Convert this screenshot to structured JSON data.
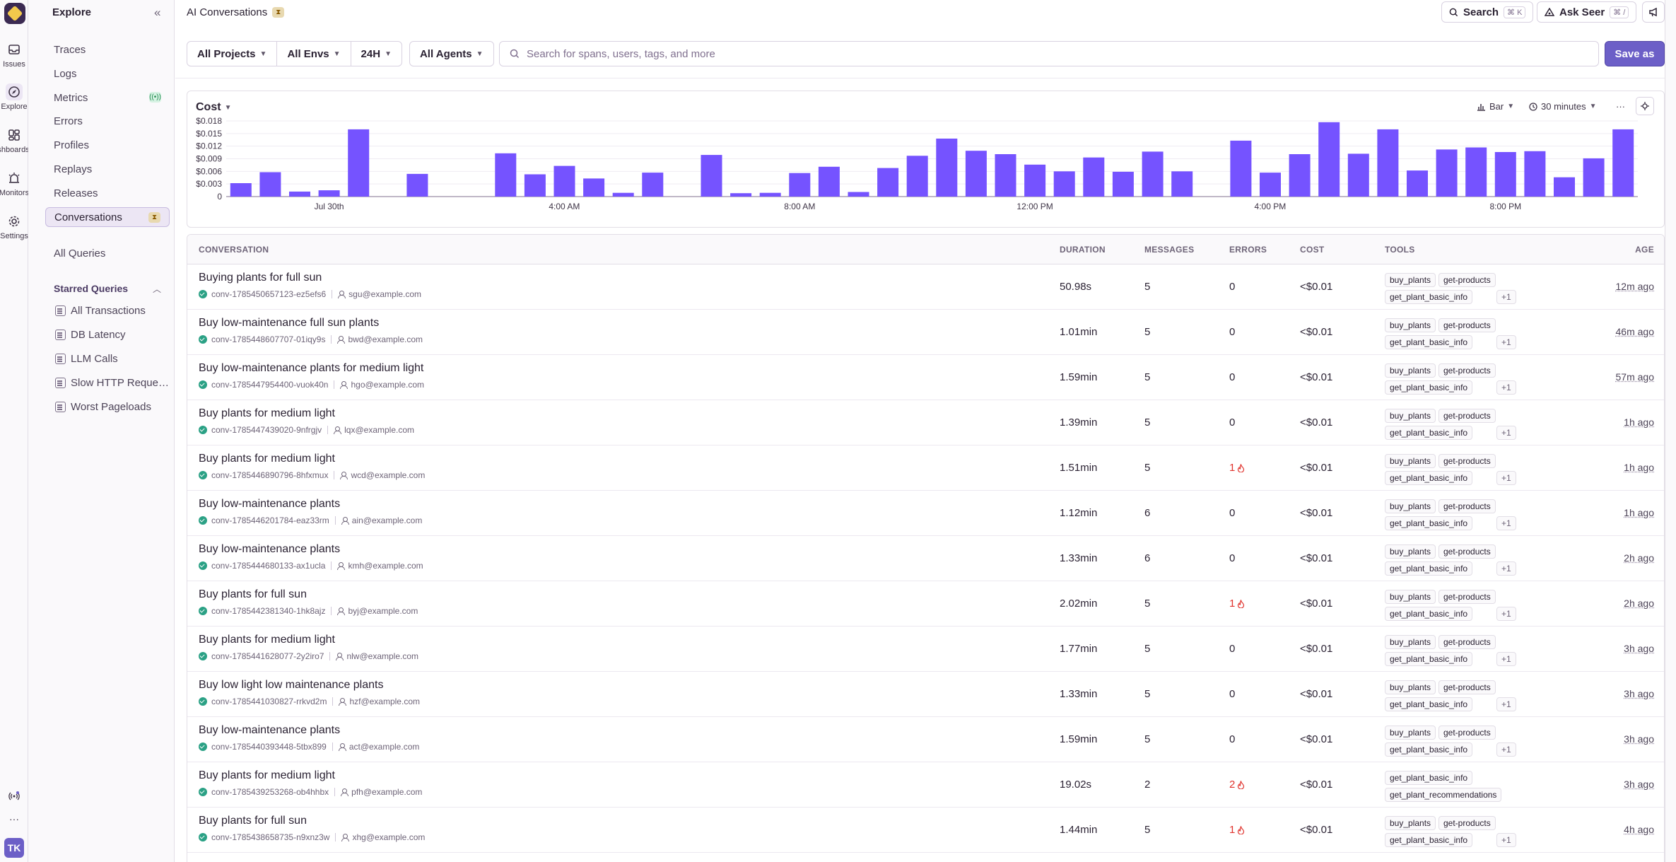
{
  "rail": {
    "items": [
      {
        "label": "Issues",
        "icon": "inbox-icon"
      },
      {
        "label": "Explore",
        "icon": "compass-icon"
      },
      {
        "label": "ashboards",
        "icon": "dashboard-icon"
      },
      {
        "label": "Monitors",
        "icon": "siren-icon"
      },
      {
        "label": "Settings",
        "icon": "gear-icon"
      }
    ],
    "more": "···",
    "avatar": "TK"
  },
  "nav": {
    "title": "Explore",
    "collapse": "«",
    "items": [
      {
        "label": "Traces"
      },
      {
        "label": "Logs"
      },
      {
        "label": "Metrics",
        "badge": "((•))"
      },
      {
        "label": "Errors"
      },
      {
        "label": "Profiles"
      },
      {
        "label": "Replays"
      },
      {
        "label": "Releases"
      },
      {
        "label": "Conversations",
        "badge": "⧗"
      }
    ],
    "all_queries": "All Queries",
    "starred_title": "Starred Queries",
    "starred": [
      "All Transactions",
      "DB Latency",
      "LLM Calls",
      "Slow HTTP Reque…",
      "Worst Pageloads"
    ]
  },
  "header": {
    "title": "AI Conversations",
    "badge": "⧗",
    "search_label": "Search",
    "search_kbd": "⌘ K",
    "seer_label": "Ask Seer",
    "seer_kbd": "⌘ /"
  },
  "filters": {
    "project": "All Projects",
    "env": "All Envs",
    "period": "24H",
    "agents": "All Agents",
    "search_placeholder": "Search for spans, users, tags, and more",
    "save_as": "Save as"
  },
  "chart_controls": {
    "title": "Cost",
    "type": "Bar",
    "interval": "30 minutes",
    "more": "···"
  },
  "chart_data": {
    "type": "bar",
    "title": "Cost",
    "ylim": [
      0,
      0.018
    ],
    "yticks": [
      "$0.018",
      "$0.015",
      "$0.012",
      "$0.009",
      "$0.006",
      "$0.003",
      "0"
    ],
    "ytick_values": [
      0.018,
      0.015,
      0.012,
      0.009,
      0.006,
      0.003,
      0
    ],
    "xtick_labels": [
      {
        "label": "Jul 30th",
        "index": 3
      },
      {
        "label": "4:00 AM",
        "index": 11
      },
      {
        "label": "8:00 AM",
        "index": 19
      },
      {
        "label": "12:00 PM",
        "index": 27
      },
      {
        "label": "4:00 PM",
        "index": 35
      },
      {
        "label": "8:00 PM",
        "index": 43
      }
    ],
    "values": [
      0.0032,
      0.0058,
      0.0012,
      0.0015,
      0.016,
      0,
      0.0054,
      0,
      0,
      0.0103,
      0.0053,
      0.0073,
      0.0043,
      0.0009,
      0.0057,
      0,
      0.0099,
      0.0008,
      0.0009,
      0.0056,
      0.0071,
      0.0011,
      0.0068,
      0.0097,
      0.0138,
      0.0109,
      0.0101,
      0.0076,
      0.006,
      0.0093,
      0.0059,
      0.0107,
      0.006,
      0,
      0.0133,
      0.0057,
      0.0101,
      0.0177,
      0.0102,
      0.016,
      0.0062,
      0.0112,
      0.0117,
      0.0106,
      0.0108,
      0.0046,
      0.0091,
      0.016
    ],
    "grid": true,
    "color": "#7553ff"
  },
  "table": {
    "headers": {
      "conversation": "CONVERSATION",
      "duration": "DURATION",
      "messages": "MESSAGES",
      "errors": "ERRORS",
      "cost": "COST",
      "tools": "TOOLS",
      "age": "AGE"
    },
    "rows": [
      {
        "title": "Buying plants for full sun",
        "id": "conv-1785450657123-ez5efs6",
        "user": "sgu@example.com",
        "duration": "50.98s",
        "messages": "5",
        "errors": "0",
        "cost": "<$0.01",
        "tools": [
          "buy_plants",
          "get-products",
          "get_plant_basic_info",
          "+1"
        ],
        "age": "12m ago"
      },
      {
        "title": "Buy low-maintenance full sun plants",
        "id": "conv-1785448607707-01iqy9s",
        "user": "bwd@example.com",
        "duration": "1.01min",
        "messages": "5",
        "errors": "0",
        "cost": "<$0.01",
        "tools": [
          "buy_plants",
          "get-products",
          "get_plant_basic_info",
          "+1"
        ],
        "age": "46m ago"
      },
      {
        "title": "Buy low-maintenance plants for medium light",
        "id": "conv-1785447954400-vuok40n",
        "user": "hgo@example.com",
        "duration": "1.59min",
        "messages": "5",
        "errors": "0",
        "cost": "<$0.01",
        "tools": [
          "buy_plants",
          "get-products",
          "get_plant_basic_info",
          "+1"
        ],
        "age": "57m ago"
      },
      {
        "title": "Buy plants for medium light",
        "id": "conv-1785447439020-9nfrgjv",
        "user": "lqx@example.com",
        "duration": "1.39min",
        "messages": "5",
        "errors": "0",
        "cost": "<$0.01",
        "tools": [
          "buy_plants",
          "get-products",
          "get_plant_basic_info",
          "+1"
        ],
        "age": "1h ago"
      },
      {
        "title": "Buy plants for medium light",
        "id": "conv-1785446890796-8hfxmux",
        "user": "wcd@example.com",
        "duration": "1.51min",
        "messages": "5",
        "errors": "1",
        "cost": "<$0.01",
        "tools": [
          "buy_plants",
          "get-products",
          "get_plant_basic_info",
          "+1"
        ],
        "age": "1h ago"
      },
      {
        "title": "Buy low-maintenance plants",
        "id": "conv-1785446201784-eaz33rm",
        "user": "ain@example.com",
        "duration": "1.12min",
        "messages": "6",
        "errors": "0",
        "cost": "<$0.01",
        "tools": [
          "buy_plants",
          "get-products",
          "get_plant_basic_info",
          "+1"
        ],
        "age": "1h ago"
      },
      {
        "title": "Buy low-maintenance plants",
        "id": "conv-1785444680133-ax1ucla",
        "user": "kmh@example.com",
        "duration": "1.33min",
        "messages": "6",
        "errors": "0",
        "cost": "<$0.01",
        "tools": [
          "buy_plants",
          "get-products",
          "get_plant_basic_info",
          "+1"
        ],
        "age": "2h ago"
      },
      {
        "title": "Buy plants for full sun",
        "id": "conv-1785442381340-1hk8ajz",
        "user": "byj@example.com",
        "duration": "2.02min",
        "messages": "5",
        "errors": "1",
        "cost": "<$0.01",
        "tools": [
          "buy_plants",
          "get-products",
          "get_plant_basic_info",
          "+1"
        ],
        "age": "2h ago"
      },
      {
        "title": "Buy plants for medium light",
        "id": "conv-1785441628077-2y2iro7",
        "user": "nlw@example.com",
        "duration": "1.77min",
        "messages": "5",
        "errors": "0",
        "cost": "<$0.01",
        "tools": [
          "buy_plants",
          "get-products",
          "get_plant_basic_info",
          "+1"
        ],
        "age": "3h ago"
      },
      {
        "title": "Buy low light low maintenance plants",
        "id": "conv-1785441030827-rrkvd2m",
        "user": "hzf@example.com",
        "duration": "1.33min",
        "messages": "5",
        "errors": "0",
        "cost": "<$0.01",
        "tools": [
          "buy_plants",
          "get-products",
          "get_plant_basic_info",
          "+1"
        ],
        "age": "3h ago"
      },
      {
        "title": "Buy low-maintenance plants",
        "id": "conv-1785440393448-5tbx899",
        "user": "act@example.com",
        "duration": "1.59min",
        "messages": "5",
        "errors": "0",
        "cost": "<$0.01",
        "tools": [
          "buy_plants",
          "get-products",
          "get_plant_basic_info",
          "+1"
        ],
        "age": "3h ago"
      },
      {
        "title": "Buy plants for medium light",
        "id": "conv-1785439253268-ob4hhbx",
        "user": "pfh@example.com",
        "duration": "19.02s",
        "messages": "2",
        "errors": "2",
        "cost": "<$0.01",
        "tools": [
          "get_plant_basic_info",
          "get_plant_recommendations"
        ],
        "age": "3h ago"
      },
      {
        "title": "Buy plants for full sun",
        "id": "conv-1785438658735-n9xnz3w",
        "user": "xhg@example.com",
        "duration": "1.44min",
        "messages": "5",
        "errors": "1",
        "cost": "<$0.01",
        "tools": [
          "buy_plants",
          "get-products",
          "get_plant_basic_info",
          "+1"
        ],
        "age": "4h ago"
      }
    ]
  }
}
